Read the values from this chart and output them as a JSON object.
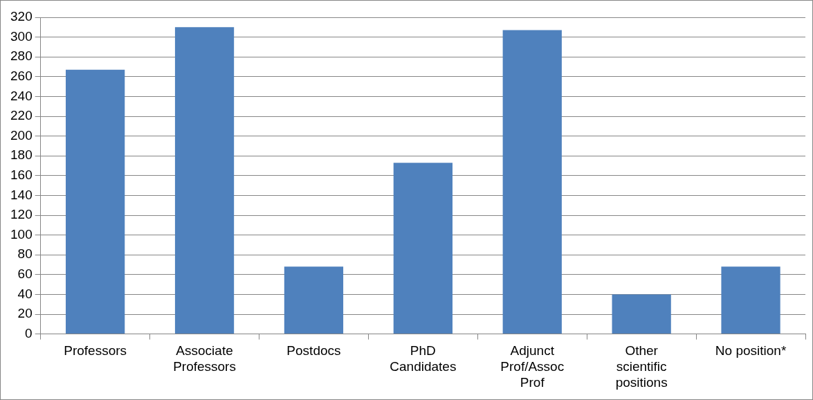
{
  "chart_data": {
    "type": "bar",
    "categories": [
      "Professors",
      "Associate Professors",
      "Postdocs",
      "PhD Candidates",
      "Adjunct Prof/Assoc Prof",
      "Other scientific positions",
      "No position*"
    ],
    "values": [
      267,
      310,
      68,
      173,
      307,
      40,
      68
    ],
    "color": "#4f81bd",
    "ylim": [
      0,
      320
    ],
    "yticks": [
      0,
      20,
      40,
      60,
      80,
      100,
      120,
      140,
      160,
      180,
      200,
      220,
      240,
      260,
      280,
      300,
      320
    ],
    "grid": "y",
    "legend": false
  }
}
